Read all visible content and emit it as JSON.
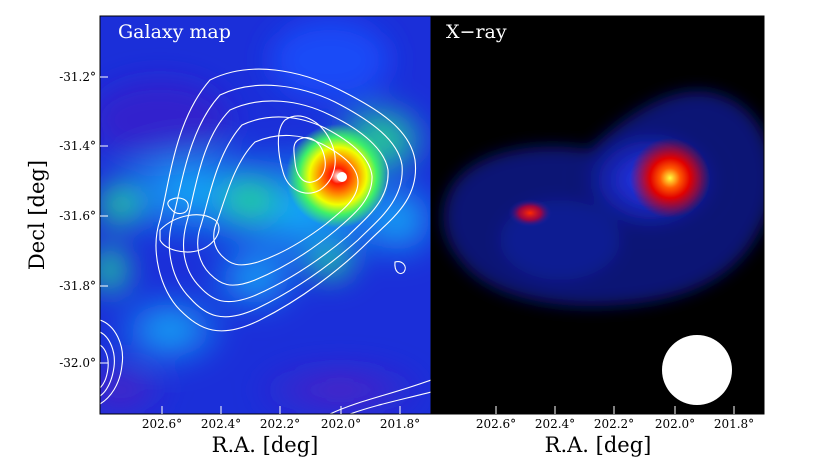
{
  "panels": [
    {
      "title": "Galaxy map",
      "colormap": "jet",
      "background": "#1a2bd8"
    },
    {
      "title": "X−ray",
      "colormap": "jet-on-black",
      "background": "#000000"
    }
  ],
  "axes": {
    "xlabel": "R.A. [deg]",
    "ylabel": "Decl [deg]",
    "xticks": [
      "202.6°",
      "202.4°",
      "202.2°",
      "202.0°",
      "201.8°"
    ],
    "yticks": [
      "-31.2°",
      "-31.4°",
      "-31.6°",
      "-31.8°",
      "-32.0°"
    ]
  },
  "colors": {
    "contour": "#ffffff",
    "peak": "#ff2a00"
  }
}
